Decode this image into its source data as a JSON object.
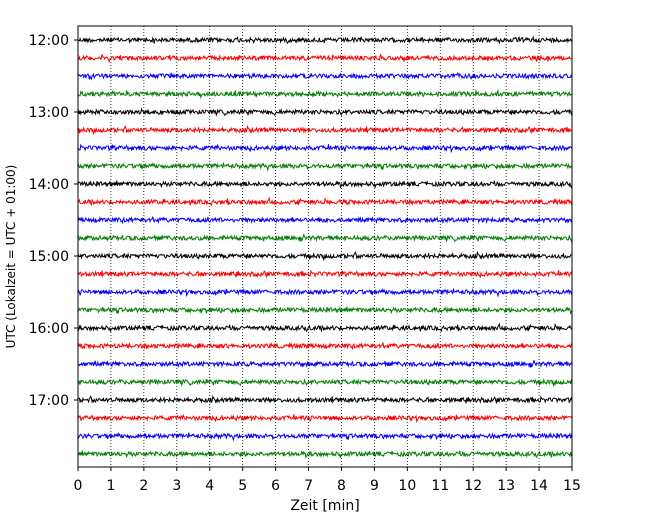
{
  "chart_data": {
    "type": "line",
    "title": "",
    "xlabel": "Zeit  [min]",
    "ylabel": "UTC (Lokalzeit = UTC + 01:00)",
    "xlim": [
      0,
      15
    ],
    "x_ticks": [
      "0",
      "1",
      "2",
      "3",
      "4",
      "5",
      "6",
      "7",
      "8",
      "9",
      "10",
      "11",
      "12",
      "13",
      "14",
      "15"
    ],
    "y_tick_labels": [
      "12:00",
      "13:00",
      "14:00",
      "15:00",
      "16:00",
      "17:00"
    ],
    "y_tick_trace_index": [
      0,
      4,
      8,
      12,
      16,
      20
    ],
    "trace_interval_min": 15,
    "start_time": "12:00",
    "trace_count": 24,
    "trace_colors": [
      "#000000",
      "#ff0000",
      "#0000ff",
      "#008000"
    ],
    "grid": {
      "x_vertical_dotted": true,
      "y": false
    },
    "legend": "none"
  }
}
